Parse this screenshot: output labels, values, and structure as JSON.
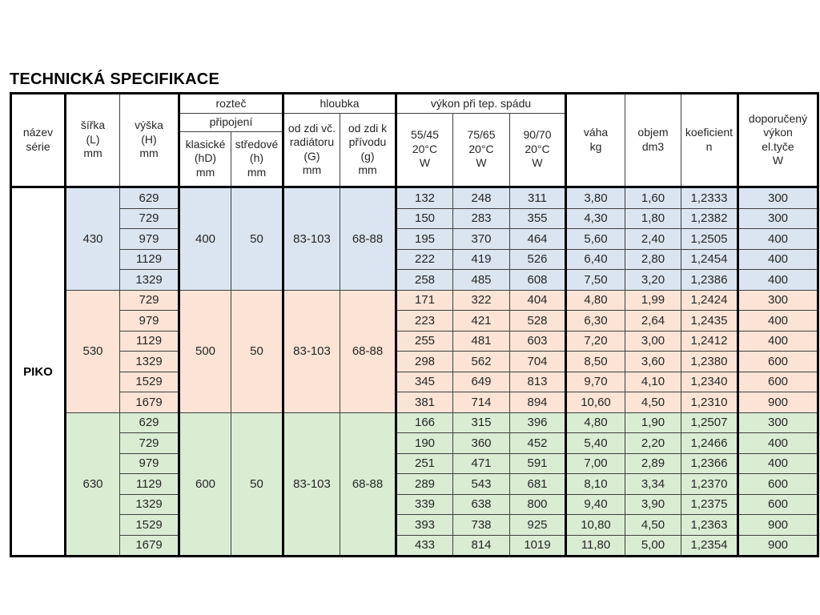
{
  "title": "TECHNICKÁ SPECIFIKACE",
  "series_name": "PIKO",
  "colors": {
    "group_blue": "#DBE5F1",
    "group_peach": "#FBE4D5",
    "group_green": "#D9EDD3",
    "border_thin": "#3f3f3f",
    "border_thick": "#000000"
  },
  "header": {
    "nazev": {
      "title": "název\nsérie"
    },
    "sirka": {
      "title": "šířka\n(L)",
      "unit": "mm"
    },
    "vyska": {
      "title": "výška\n(H)",
      "unit": "mm"
    },
    "roztec": {
      "title": "rozteč",
      "sub": "připojení",
      "cols": [
        {
          "title": "klasické\n(hD)",
          "unit": "mm"
        },
        {
          "title": "středové\n(h)",
          "unit": "mm"
        }
      ]
    },
    "hloubka": {
      "title": "hloubka",
      "cols": [
        {
          "title": "od zdi vč.\nradiátoru\n(G)",
          "unit": "mm"
        },
        {
          "title": "od zdi k\npřívodu\n(g)",
          "unit": "mm"
        }
      ]
    },
    "vykon": {
      "title": "výkon při tep. spádu",
      "cols": [
        {
          "title": "55/45\n20°C",
          "unit": "W"
        },
        {
          "title": "75/65\n20°C",
          "unit": "W"
        },
        {
          "title": "90/70\n20°C",
          "unit": "W"
        }
      ]
    },
    "vaha": {
      "title": "váha",
      "unit": "kg"
    },
    "objem": {
      "title": "objem",
      "unit": "dm3"
    },
    "koeficient": {
      "title": "koeficient",
      "unit": "n"
    },
    "doporuceny": {
      "title": "doporučený\nvýkon\nel.tyče",
      "unit": "W"
    }
  },
  "row_fields": [
    "vyska",
    "vykon_55_45",
    "vykon_75_65",
    "vykon_90_70",
    "vaha",
    "objem",
    "koeficient",
    "doporuceny_vykon"
  ],
  "groups": [
    {
      "color": "#DBE5F1",
      "sirka": "430",
      "klasicke": "400",
      "stredove": "50",
      "od_zdi_vc": "83-103",
      "od_zdi_k": "68-88",
      "rows": [
        [
          "629",
          "132",
          "248",
          "311",
          "3,80",
          "1,60",
          "1,2333",
          "300"
        ],
        [
          "729",
          "150",
          "283",
          "355",
          "4,30",
          "1,80",
          "1,2382",
          "300"
        ],
        [
          "979",
          "195",
          "370",
          "464",
          "5,60",
          "2,40",
          "1,2505",
          "400"
        ],
        [
          "1129",
          "222",
          "419",
          "526",
          "6,40",
          "2,80",
          "1,2454",
          "400"
        ],
        [
          "1329",
          "258",
          "485",
          "608",
          "7,50",
          "3,20",
          "1,2386",
          "400"
        ]
      ]
    },
    {
      "color": "#FBE4D5",
      "sirka": "530",
      "klasicke": "500",
      "stredove": "50",
      "od_zdi_vc": "83-103",
      "od_zdi_k": "68-88",
      "rows": [
        [
          "729",
          "171",
          "322",
          "404",
          "4,80",
          "1,99",
          "1,2424",
          "300"
        ],
        [
          "979",
          "223",
          "421",
          "528",
          "6,30",
          "2,64",
          "1,2435",
          "400"
        ],
        [
          "1129",
          "255",
          "481",
          "603",
          "7,20",
          "3,00",
          "1,2412",
          "400"
        ],
        [
          "1329",
          "298",
          "562",
          "704",
          "8,50",
          "3,60",
          "1,2380",
          "600"
        ],
        [
          "1529",
          "345",
          "649",
          "813",
          "9,70",
          "4,10",
          "1,2340",
          "600"
        ],
        [
          "1679",
          "381",
          "714",
          "894",
          "10,60",
          "4,50",
          "1,2310",
          "900"
        ]
      ]
    },
    {
      "color": "#D9EDD3",
      "sirka": "630",
      "klasicke": "600",
      "stredove": "50",
      "od_zdi_vc": "83-103",
      "od_zdi_k": "68-88",
      "rows": [
        [
          "629",
          "166",
          "315",
          "396",
          "4,80",
          "1,90",
          "1,2507",
          "300"
        ],
        [
          "729",
          "190",
          "360",
          "452",
          "5,40",
          "2,20",
          "1,2466",
          "400"
        ],
        [
          "979",
          "251",
          "471",
          "591",
          "7,00",
          "2,89",
          "1,2366",
          "400"
        ],
        [
          "1129",
          "289",
          "543",
          "681",
          "8,10",
          "3,34",
          "1,2370",
          "600"
        ],
        [
          "1329",
          "339",
          "638",
          "800",
          "9,40",
          "3,90",
          "1,2375",
          "600"
        ],
        [
          "1529",
          "393",
          "738",
          "925",
          "10,80",
          "4,50",
          "1,2363",
          "900"
        ],
        [
          "1679",
          "433",
          "814",
          "1019",
          "11,80",
          "5,00",
          "1,2354",
          "900"
        ]
      ]
    }
  ]
}
